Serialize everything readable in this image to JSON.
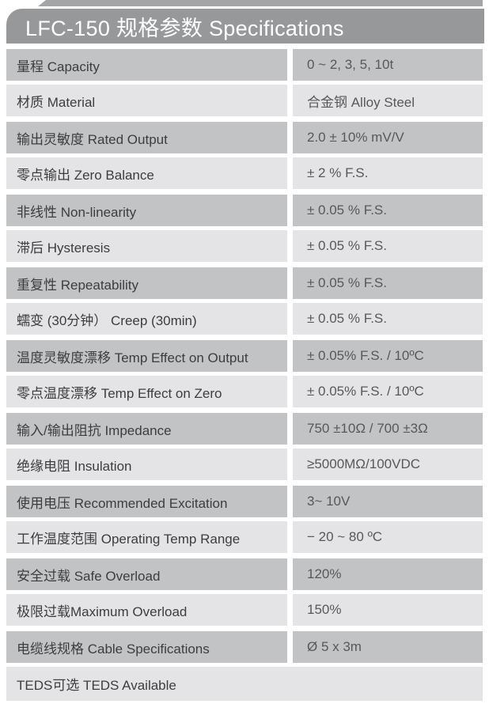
{
  "header": {
    "title": "LFC-150 规格参数 Specifications"
  },
  "colors": {
    "header_bg": "#97989a",
    "top_strip": "#a4a5a7",
    "row_dark": "#c2c3c5",
    "row_light": "#e4e4e6",
    "header_text": "#ffffff",
    "label_text": "#3d3d40",
    "value_text": "#58585b",
    "page_bg": "#ffffff"
  },
  "table": {
    "rows": [
      {
        "label": "量程 Capacity",
        "value": "0 ~ 2, 3, 5, 10t",
        "shade": "dark",
        "full_width": false
      },
      {
        "label": "材质 Material",
        "value": "合金钢 Alloy Steel",
        "shade": "light",
        "full_width": false
      },
      {
        "label": "输出灵敏度 Rated Output",
        "value": "2.0 ± 10% mV/V",
        "shade": "dark",
        "full_width": false
      },
      {
        "label": "零点输出 Zero Balance",
        "value": "± 2 % F.S.",
        "shade": "light",
        "full_width": false
      },
      {
        "label": "非线性 Non-linearity",
        "value": "± 0.05 % F.S.",
        "shade": "dark",
        "full_width": false
      },
      {
        "label": "滞后 Hysteresis",
        "value": "± 0.05 % F.S.",
        "shade": "light",
        "full_width": false
      },
      {
        "label": "重复性 Repeatability",
        "value": "± 0.05 % F.S.",
        "shade": "dark",
        "full_width": false
      },
      {
        "label": "蠕变 (30分钟） Creep (30min)",
        "value": "± 0.05 % F.S.",
        "shade": "light",
        "full_width": false
      },
      {
        "label": "温度灵敏度漂移 Temp Effect on Output",
        "value": "± 0.05% F.S. / 10ºC",
        "shade": "dark",
        "full_width": false
      },
      {
        "label": "零点温度漂移 Temp Effect on Zero",
        "value": "± 0.05% F.S. / 10ºC",
        "shade": "light",
        "full_width": false
      },
      {
        "label": "输入/输出阻抗 Impedance",
        "value": "750 ±10Ω /  700 ±3Ω",
        "shade": "dark",
        "full_width": false
      },
      {
        "label": "绝缘电阻 Insulation",
        "value": "≥5000MΩ/100VDC",
        "shade": "light",
        "full_width": false
      },
      {
        "label": "使用电压 Recommended Excitation",
        "value": "3~ 10V",
        "shade": "dark",
        "full_width": false
      },
      {
        "label": "工作温度范围 Operating Temp Range",
        "value": "− 20 ~ 80 ºC",
        "shade": "light",
        "full_width": false
      },
      {
        "label": "安全过载 Safe Overload",
        "value": "120%",
        "shade": "dark",
        "full_width": false
      },
      {
        "label": "极限过载Maximum Overload",
        "value": "150%",
        "shade": "light",
        "full_width": false
      },
      {
        "label": "电缆线规格 Cable Specifications",
        "value": "Ø 5 x 3m",
        "shade": "dark",
        "full_width": false
      },
      {
        "label": "TEDS可选 TEDS Available",
        "value": "",
        "shade": "light",
        "full_width": true
      }
    ]
  }
}
